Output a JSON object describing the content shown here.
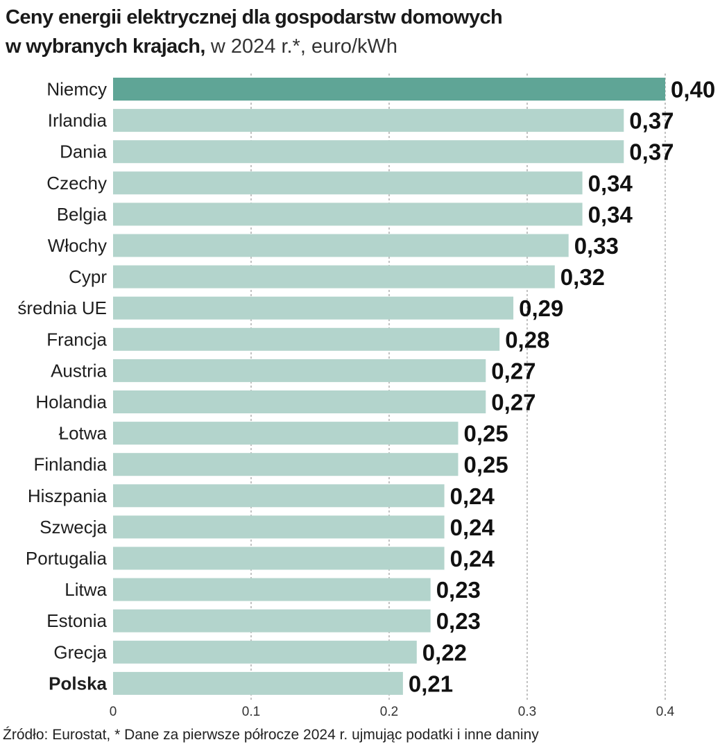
{
  "header": {
    "title_line1": "Ceny energii elektrycznej dla gospodarstw domowych",
    "title_line2_bold": "w wybranych krajach,",
    "title_line2_rest": "w 2024 r.*, euro/kWh"
  },
  "colors": {
    "highlight": "#5fa596",
    "bar": "#b3d4cc",
    "grid": "#9a9a9a"
  },
  "chart_data": {
    "type": "bar",
    "orientation": "horizontal",
    "categories": [
      "Niemcy",
      "Irlandia",
      "Dania",
      "Czechy",
      "Belgia",
      "Włochy",
      "Cypr",
      "średnia UE",
      "Francja",
      "Austria",
      "Holandia",
      "Łotwa",
      "Finlandia",
      "Hiszpania",
      "Szwecja",
      "Portugalia",
      "Litwa",
      "Estonia",
      "Grecja",
      "Polska"
    ],
    "values": [
      0.4,
      0.37,
      0.37,
      0.34,
      0.34,
      0.33,
      0.32,
      0.29,
      0.28,
      0.27,
      0.27,
      0.25,
      0.25,
      0.24,
      0.24,
      0.24,
      0.23,
      0.23,
      0.22,
      0.21
    ],
    "value_labels": [
      "0,40",
      "0,37",
      "0,37",
      "0,34",
      "0,34",
      "0,33",
      "0,32",
      "0,29",
      "0,28",
      "0,27",
      "0,27",
      "0,25",
      "0,25",
      "0,24",
      "0,24",
      "0,24",
      "0,23",
      "0,23",
      "0,22",
      "0,21"
    ],
    "highlighted_category": "Niemcy",
    "bold_category": "Polska",
    "xlim": [
      0,
      0.4
    ],
    "xticks": [
      0,
      0.1,
      0.2,
      0.3,
      0.4
    ],
    "xtick_labels": [
      "0",
      "0.1",
      "0.2",
      "0.3",
      "0.4"
    ],
    "grid": "vertical dashed"
  },
  "footer": {
    "source": "Źródło: Eurostat, * Dane za pierwsze półrocze 2024 r. ujmując podatki i inne daniny"
  }
}
